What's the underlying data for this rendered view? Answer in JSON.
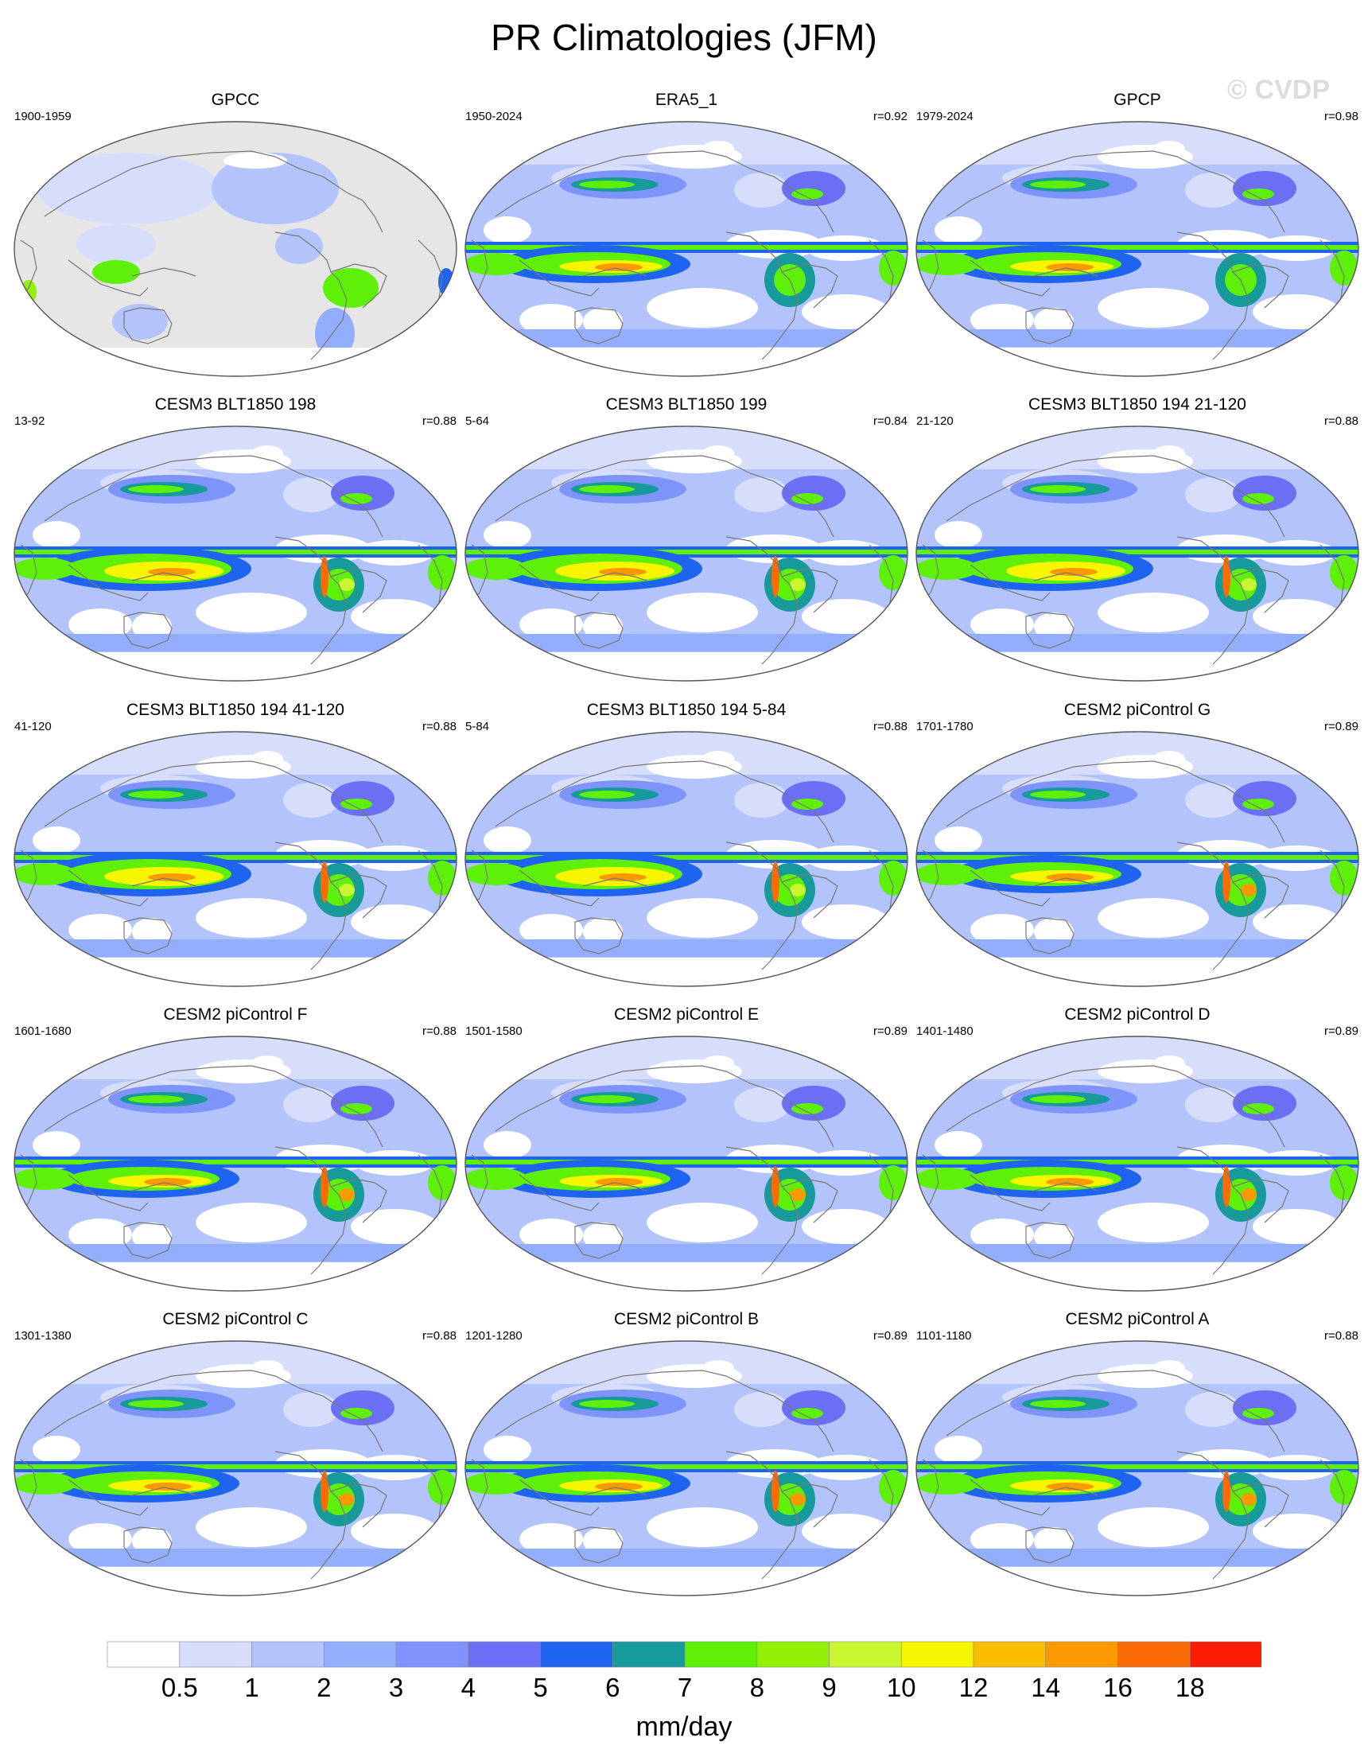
{
  "title": "PR Climatologies (JFM)",
  "watermark": "© CVDP",
  "colors": {
    "land_missing": "#e6e6e6",
    "coastline": "#777777",
    "border": "#555555"
  },
  "panels": [
    {
      "title": "GPCC",
      "years": "1900-1959",
      "corr": "",
      "type": "obs_land"
    },
    {
      "title": "ERA5_1",
      "years": "1950-2024",
      "corr": "r=0.92",
      "type": "obs"
    },
    {
      "title": "GPCP",
      "years": "1979-2024",
      "corr": "r=0.98",
      "type": "obs"
    },
    {
      "title": "CESM3 BLT1850 198",
      "years": "13-92",
      "corr": "r=0.88",
      "type": "cesm3"
    },
    {
      "title": "CESM3 BLT1850 199",
      "years": "5-64",
      "corr": "r=0.84",
      "type": "cesm3"
    },
    {
      "title": "CESM3 BLT1850 194 21-120",
      "years": "21-120",
      "corr": "r=0.88",
      "type": "cesm3"
    },
    {
      "title": "CESM3 BLT1850 194 41-120",
      "years": "41-120",
      "corr": "r=0.88",
      "type": "cesm3"
    },
    {
      "title": "CESM3 BLT1850 194 5-84",
      "years": "5-84",
      "corr": "r=0.88",
      "type": "cesm3"
    },
    {
      "title": "CESM2 piControl G",
      "years": "1701-1780",
      "corr": "r=0.89",
      "type": "cesm2"
    },
    {
      "title": "CESM2 piControl F",
      "years": "1601-1680",
      "corr": "r=0.88",
      "type": "cesm2"
    },
    {
      "title": "CESM2 piControl E",
      "years": "1501-1580",
      "corr": "r=0.89",
      "type": "cesm2"
    },
    {
      "title": "CESM2 piControl D",
      "years": "1401-1480",
      "corr": "r=0.89",
      "type": "cesm2"
    },
    {
      "title": "CESM2 piControl C",
      "years": "1301-1380",
      "corr": "r=0.88",
      "type": "cesm2"
    },
    {
      "title": "CESM2 piControl B",
      "years": "1201-1280",
      "corr": "r=0.89",
      "type": "cesm2"
    },
    {
      "title": "CESM2 piControl A",
      "years": "1101-1180",
      "corr": "r=0.88",
      "type": "cesm2"
    }
  ],
  "chart_data": {
    "type": "heatmap",
    "title": "PR Climatologies (JFM)",
    "projection": "robinson-like global map centered on the Pacific",
    "colorbar": {
      "unit": "mm/day",
      "levels": [
        0.5,
        1,
        2,
        3,
        4,
        5,
        6,
        7,
        8,
        9,
        10,
        12,
        14,
        16,
        18
      ],
      "level_labels": [
        "0.5",
        "1",
        "2",
        "3",
        "4",
        "5",
        "6",
        "7",
        "8",
        "9",
        "10",
        "12",
        "14",
        "16",
        "18"
      ],
      "colors": [
        "#ffffff",
        "#d6defb",
        "#b3c3fb",
        "#93aefc",
        "#7f94fb",
        "#6a6ff4",
        "#1e64f0",
        "#179a9a",
        "#5ff00a",
        "#93f006",
        "#c8f630",
        "#f8f500",
        "#fbbd00",
        "#fb9a00",
        "#fb6a05",
        "#fb1e05"
      ]
    },
    "panels": [
      {
        "name": "GPCC",
        "period": "1900-1959",
        "pattern_correlation": null
      },
      {
        "name": "ERA5_1",
        "period": "1950-2024",
        "pattern_correlation": 0.92
      },
      {
        "name": "GPCP",
        "period": "1979-2024",
        "pattern_correlation": 0.98
      },
      {
        "name": "CESM3 BLT1850 198",
        "period": "13-92",
        "pattern_correlation": 0.88
      },
      {
        "name": "CESM3 BLT1850 199",
        "period": "5-64",
        "pattern_correlation": 0.84
      },
      {
        "name": "CESM3 BLT1850 194 21-120",
        "period": "21-120",
        "pattern_correlation": 0.88
      },
      {
        "name": "CESM3 BLT1850 194 41-120",
        "period": "41-120",
        "pattern_correlation": 0.88
      },
      {
        "name": "CESM3 BLT1850 194 5-84",
        "period": "5-84",
        "pattern_correlation": 0.88
      },
      {
        "name": "CESM2 piControl G",
        "period": "1701-1780",
        "pattern_correlation": 0.89
      },
      {
        "name": "CESM2 piControl F",
        "period": "1601-1680",
        "pattern_correlation": 0.88
      },
      {
        "name": "CESM2 piControl E",
        "period": "1501-1580",
        "pattern_correlation": 0.89
      },
      {
        "name": "CESM2 piControl D",
        "period": "1401-1480",
        "pattern_correlation": 0.89
      },
      {
        "name": "CESM2 piControl C",
        "period": "1301-1380",
        "pattern_correlation": 0.88
      },
      {
        "name": "CESM2 piControl B",
        "period": "1201-1280",
        "pattern_correlation": 0.89
      },
      {
        "name": "CESM2 piControl A",
        "period": "1101-1180",
        "pattern_correlation": 0.88
      }
    ]
  }
}
